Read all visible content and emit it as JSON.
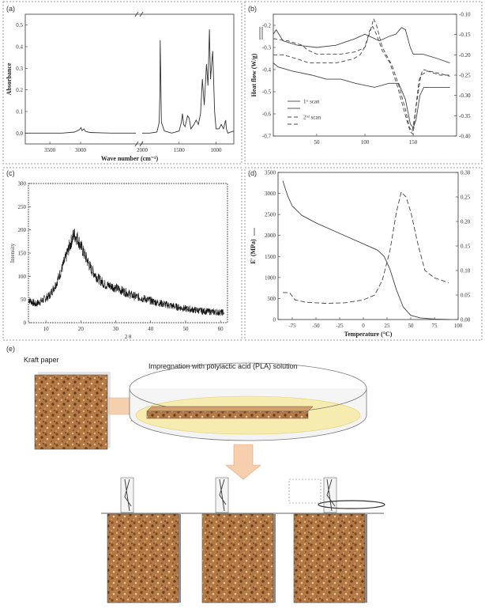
{
  "panels": {
    "a": "(a)",
    "b": "(b)",
    "c": "(c)",
    "d": "(d)",
    "e": "(e)"
  },
  "chart_data": [
    {
      "id": "a",
      "type": "line",
      "xlabel": "Wave number (cm⁻¹)",
      "ylabel": "Absorbance",
      "xticks": [
        "3500",
        "3000",
        "2000",
        "1500",
        "1000"
      ],
      "yticks": [
        "0.0",
        "0.1",
        "0.2",
        "0.3",
        "0.4",
        "0.5"
      ],
      "ylim": [
        -0.05,
        0.55
      ],
      "x_reversed": true,
      "broken_axis": true,
      "series": [
        {
          "points": [
            [
              3900,
              0.0
            ],
            [
              3300,
              0.0
            ],
            [
              3100,
              0.005
            ],
            [
              3020,
              0.015
            ],
            [
              2995,
              0.025
            ],
            [
              2975,
              0.012
            ],
            [
              2945,
              0.02
            ],
            [
              2920,
              0.008
            ],
            [
              2850,
              0.003
            ],
            [
              2500,
              0.0
            ],
            [
              2100,
              0.0
            ],
            [
              2000,
              0.0
            ],
            [
              1900,
              0.0
            ],
            [
              1800,
              0.005
            ],
            [
              1770,
              0.05
            ],
            [
              1760,
              0.2
            ],
            [
              1756,
              0.43
            ],
            [
              1750,
              0.3
            ],
            [
              1740,
              0.05
            ],
            [
              1700,
              0.01
            ],
            [
              1600,
              0.0
            ],
            [
              1500,
              0.01
            ],
            [
              1470,
              0.05
            ],
            [
              1455,
              0.09
            ],
            [
              1440,
              0.04
            ],
            [
              1420,
              0.03
            ],
            [
              1385,
              0.08
            ],
            [
              1365,
              0.07
            ],
            [
              1340,
              0.02
            ],
            [
              1300,
              0.04
            ],
            [
              1270,
              0.06
            ],
            [
              1240,
              0.04
            ],
            [
              1210,
              0.09
            ],
            [
              1185,
              0.25
            ],
            [
              1160,
              0.13
            ],
            [
              1130,
              0.32
            ],
            [
              1110,
              0.22
            ],
            [
              1090,
              0.48
            ],
            [
              1075,
              0.25
            ],
            [
              1045,
              0.38
            ],
            [
              1020,
              0.1
            ],
            [
              1000,
              0.02
            ],
            [
              960,
              0.02
            ],
            [
              930,
              0.04
            ],
            [
              900,
              0.02
            ],
            [
              870,
              0.06
            ],
            [
              860,
              0.02
            ],
            [
              840,
              0.0
            ],
            [
              760,
              0.01
            ]
          ]
        }
      ]
    },
    {
      "id": "b",
      "type": "line",
      "ylabel": "Heat flow (W/g)",
      "xticks": [
        "50",
        "100",
        "150"
      ],
      "xlim": [
        5,
        195
      ],
      "yticks_left": [
        "-0.2",
        "-0.3",
        "-0.4",
        "-0.5",
        "-0.6",
        "-0.7"
      ],
      "ylim_left": [
        -0.7,
        -0.15
      ],
      "yticks_right": [
        "-0.10",
        "-0.15",
        "-0.20",
        "-0.25",
        "-0.30",
        "-0.35",
        "-0.40"
      ],
      "ylim_right": [
        -0.4,
        -0.1
      ],
      "legend": [
        "1ˢᵗ scan",
        "2ⁿᵈ scan"
      ],
      "series": [
        {
          "name": "1ˢᵗ scan",
          "axis": "left",
          "dash": "",
          "points": [
            [
              5,
              -0.24
            ],
            [
              8,
              -0.22
            ],
            [
              15,
              -0.27
            ],
            [
              30,
              -0.29
            ],
            [
              50,
              -0.3
            ],
            [
              70,
              -0.29
            ],
            [
              90,
              -0.26
            ],
            [
              100,
              -0.24
            ],
            [
              110,
              -0.26
            ],
            [
              115,
              -0.27
            ],
            [
              125,
              -0.25
            ],
            [
              132,
              -0.24
            ],
            [
              138,
              -0.21
            ],
            [
              142,
              -0.22
            ],
            [
              147,
              -0.3
            ],
            [
              150,
              -0.33
            ],
            [
              160,
              -0.33
            ],
            [
              175,
              -0.35
            ],
            [
              188,
              -0.37
            ]
          ]
        },
        {
          "name": "",
          "axis": "right",
          "dash": "",
          "points": [
            [
              5,
              -0.22
            ],
            [
              10,
              -0.23
            ],
            [
              25,
              -0.24
            ],
            [
              45,
              -0.25
            ],
            [
              60,
              -0.26
            ],
            [
              75,
              -0.26
            ],
            [
              90,
              -0.27
            ],
            [
              110,
              -0.28
            ],
            [
              125,
              -0.27
            ],
            [
              135,
              -0.27
            ],
            [
              142,
              -0.31
            ],
            [
              147,
              -0.37
            ],
            [
              150,
              -0.38
            ],
            [
              153,
              -0.36
            ],
            [
              157,
              -0.3
            ],
            [
              161,
              -0.28
            ],
            [
              170,
              -0.28
            ],
            [
              185,
              -0.28
            ],
            [
              188,
              -0.28
            ]
          ]
        },
        {
          "name": "2ⁿᵈ scan",
          "axis": "left",
          "dash": "5,3",
          "points": [
            [
              5,
              -0.26
            ],
            [
              20,
              -0.27
            ],
            [
              35,
              -0.29
            ],
            [
              40,
              -0.31
            ],
            [
              50,
              -0.33
            ],
            [
              60,
              -0.33
            ],
            [
              75,
              -0.33
            ],
            [
              90,
              -0.32
            ],
            [
              100,
              -0.3
            ],
            [
              106,
              -0.22
            ],
            [
              109,
              -0.17
            ],
            [
              112,
              -0.2
            ],
            [
              118,
              -0.3
            ],
            [
              128,
              -0.38
            ],
            [
              135,
              -0.47
            ],
            [
              142,
              -0.58
            ],
            [
              146,
              -0.66
            ],
            [
              149,
              -0.68
            ],
            [
              152,
              -0.6
            ],
            [
              156,
              -0.45
            ],
            [
              160,
              -0.4
            ],
            [
              170,
              -0.41
            ],
            [
              180,
              -0.42
            ],
            [
              188,
              -0.43
            ]
          ]
        },
        {
          "name": "",
          "axis": "right",
          "dash": "5,3",
          "points": [
            [
              5,
              -0.2
            ],
            [
              15,
              -0.2
            ],
            [
              30,
              -0.21
            ],
            [
              42,
              -0.22
            ],
            [
              55,
              -0.22
            ],
            [
              70,
              -0.22
            ],
            [
              88,
              -0.21
            ],
            [
              95,
              -0.2
            ],
            [
              100,
              -0.18
            ],
            [
              105,
              -0.14
            ],
            [
              108,
              -0.13
            ],
            [
              112,
              -0.15
            ],
            [
              118,
              -0.19
            ],
            [
              126,
              -0.22
            ],
            [
              134,
              -0.28
            ],
            [
              142,
              -0.35
            ],
            [
              147,
              -0.39
            ],
            [
              150,
              -0.395
            ],
            [
              153,
              -0.33
            ],
            [
              158,
              -0.25
            ],
            [
              165,
              -0.24
            ],
            [
              178,
              -0.25
            ],
            [
              188,
              -0.25
            ]
          ]
        }
      ]
    },
    {
      "id": "c",
      "type": "line",
      "ylabel": "Intensity",
      "xlabel": "2 θ",
      "xticks": [
        "10",
        "20",
        "30",
        "40",
        "50",
        "60"
      ],
      "xlim": [
        5,
        62
      ],
      "yticks": [
        "0",
        "50",
        "100",
        "150",
        "200",
        "250",
        "300"
      ],
      "ylim": [
        0,
        300
      ],
      "series": [
        {
          "points": [
            [
              5,
              50
            ],
            [
              7,
              40
            ],
            [
              9,
              48
            ],
            [
              11,
              58
            ],
            [
              13,
              85
            ],
            [
              15,
              125
            ],
            [
              17,
              170
            ],
            [
              18,
              190
            ],
            [
              19,
              183
            ],
            [
              20,
              165
            ],
            [
              21,
              148
            ],
            [
              23,
              115
            ],
            [
              25,
              95
            ],
            [
              27,
              82
            ],
            [
              29,
              78
            ],
            [
              31,
              72
            ],
            [
              33,
              65
            ],
            [
              35,
              58
            ],
            [
              38,
              52
            ],
            [
              41,
              45
            ],
            [
              45,
              38
            ],
            [
              50,
              30
            ],
            [
              55,
              25
            ],
            [
              60,
              22
            ],
            [
              61,
              22
            ]
          ],
          "noise": 12
        }
      ]
    },
    {
      "id": "d",
      "type": "line",
      "ylabel": "E' (MPa)",
      "xlabel": "Temperature (°C)",
      "xticks": [
        "-75",
        "-50",
        "-25",
        "0",
        "25",
        "50",
        "75",
        "100"
      ],
      "xlim": [
        -90,
        100
      ],
      "yticks_left": [
        "0",
        "500",
        "1000",
        "1500",
        "2000",
        "2500",
        "3000",
        "3500"
      ],
      "ylim_left": [
        0,
        3500
      ],
      "yticks_right": [
        "0.00",
        "0.05",
        "0.10",
        "0.15",
        "0.20",
        "0.25",
        "0.30"
      ],
      "ylim_right": [
        0,
        0.3
      ],
      "series": [
        {
          "name": "",
          "axis": "left",
          "dash": "",
          "points": [
            [
              -85,
              3300
            ],
            [
              -80,
              2950
            ],
            [
              -75,
              2700
            ],
            [
              -65,
              2480
            ],
            [
              -50,
              2300
            ],
            [
              -25,
              2050
            ],
            [
              0,
              1800
            ],
            [
              15,
              1650
            ],
            [
              22,
              1500
            ],
            [
              28,
              1200
            ],
            [
              35,
              700
            ],
            [
              42,
              300
            ],
            [
              50,
              100
            ],
            [
              60,
              40
            ],
            [
              75,
              10
            ],
            [
              92,
              0
            ]
          ]
        },
        {
          "name": "",
          "axis": "right",
          "dash": "6,3",
          "points": [
            [
              -85,
              0.055
            ],
            [
              -78,
              0.055
            ],
            [
              -72,
              0.04
            ],
            [
              -60,
              0.035
            ],
            [
              -40,
              0.033
            ],
            [
              -20,
              0.034
            ],
            [
              0,
              0.04
            ],
            [
              12,
              0.05
            ],
            [
              20,
              0.08
            ],
            [
              28,
              0.14
            ],
            [
              35,
              0.22
            ],
            [
              40,
              0.26
            ],
            [
              45,
              0.25
            ],
            [
              50,
              0.22
            ],
            [
              58,
              0.15
            ],
            [
              65,
              0.1
            ],
            [
              75,
              0.085
            ],
            [
              90,
              0.075
            ]
          ]
        }
      ]
    }
  ],
  "schematic": {
    "label_kraft": "Kraft paper",
    "label_impregnation": "Impregnation with polylactic acid (PLA) solution"
  },
  "colors": {
    "paper": "#a86b3c",
    "paper_light": "#d9a56f",
    "solution": "#f6ecb0",
    "arrow": "#f3c9a6"
  }
}
